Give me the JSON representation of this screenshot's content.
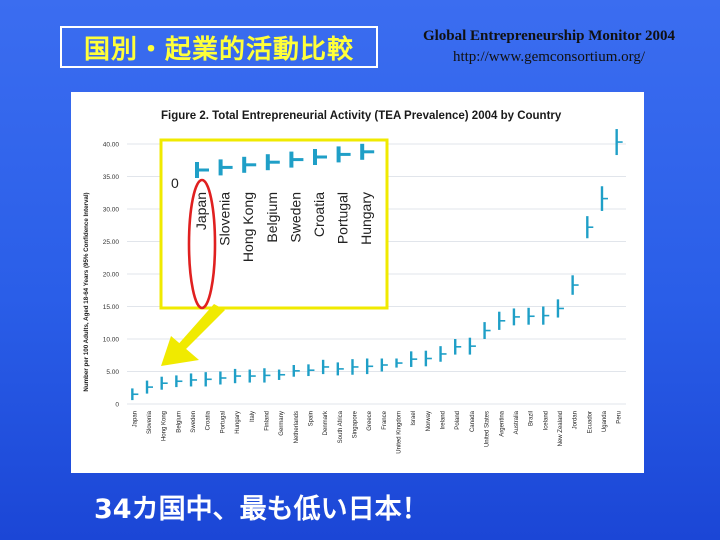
{
  "slide": {
    "title": "国別・起業的活動比較",
    "source_title": "Global Entrepreneurship Monitor 2004",
    "source_url": "http://www.gemconsortium.org/",
    "caption": "34カ国中、最も低い日本！"
  },
  "colors": {
    "marker": "#1f9fc7",
    "zoom": "#f0ea00",
    "highlight": "#e02020",
    "text": "#1a1a1a"
  },
  "chart_data": {
    "type": "scatter",
    "title": "Figure 2. Total Entrepreneurial Activity (TEA Prevalence) 2004 by Country",
    "ylabel": "Number per 100 Adults, Aged 18-64 Years (95% Confidence Interval)",
    "ylim": [
      0,
      40
    ],
    "yticks": [
      "0",
      "5.00",
      "10.00",
      "15.00",
      "20.00",
      "25.00",
      "30.00",
      "35.00",
      "40.00"
    ],
    "grid": true,
    "categories": [
      "Japan",
      "Slovenia",
      "Hong Kong",
      "Belgium",
      "Sweden",
      "Croatia",
      "Portugal",
      "Hungary",
      "Italy",
      "Finland",
      "Germany",
      "Netherlands",
      "Spain",
      "Denmark",
      "South Africa",
      "Singapore",
      "Greece",
      "France",
      "United Kingdom",
      "Israel",
      "Norway",
      "Ireland",
      "Poland",
      "Canada",
      "United States",
      "Argentina",
      "Australia",
      "Brazil",
      "Iceland",
      "New Zealand",
      "Jordan",
      "Ecuador",
      "Uganda",
      "Peru"
    ],
    "values": [
      1.5,
      2.6,
      3.2,
      3.5,
      3.7,
      3.8,
      4.0,
      4.3,
      4.3,
      4.4,
      4.5,
      5.1,
      5.2,
      5.7,
      5.4,
      5.7,
      5.8,
      6.0,
      6.3,
      6.9,
      7.0,
      7.7,
      8.8,
      8.9,
      11.3,
      12.8,
      13.4,
      13.5,
      13.6,
      14.7,
      18.3,
      27.2,
      31.6,
      40.3
    ],
    "ci_low": [
      0.6,
      1.6,
      2.2,
      2.6,
      2.7,
      2.7,
      3.0,
      3.2,
      3.3,
      3.3,
      3.7,
      4.2,
      4.3,
      4.6,
      4.4,
      4.5,
      4.6,
      5.0,
      5.6,
      5.7,
      5.8,
      6.5,
      7.6,
      7.6,
      10.0,
      11.4,
      12.1,
      12.2,
      12.2,
      13.3,
      16.8,
      25.5,
      29.7,
      38.3
    ],
    "ci_high": [
      2.4,
      3.6,
      4.2,
      4.4,
      4.7,
      4.9,
      5.0,
      5.4,
      5.3,
      5.5,
      5.3,
      6.0,
      6.1,
      6.8,
      6.4,
      6.9,
      7.0,
      7.0,
      7.0,
      8.1,
      8.2,
      8.9,
      10.0,
      10.2,
      12.6,
      14.2,
      14.7,
      14.8,
      15.0,
      16.1,
      19.8,
      28.9,
      33.5,
      42.3
    ]
  },
  "zoom_inset": {
    "zero_label": "0",
    "countries": [
      "Japan",
      "Slovenia",
      "Hong Kong",
      "Belgium",
      "Sweden",
      "Croatia",
      "Portugal",
      "Hungary"
    ]
  }
}
